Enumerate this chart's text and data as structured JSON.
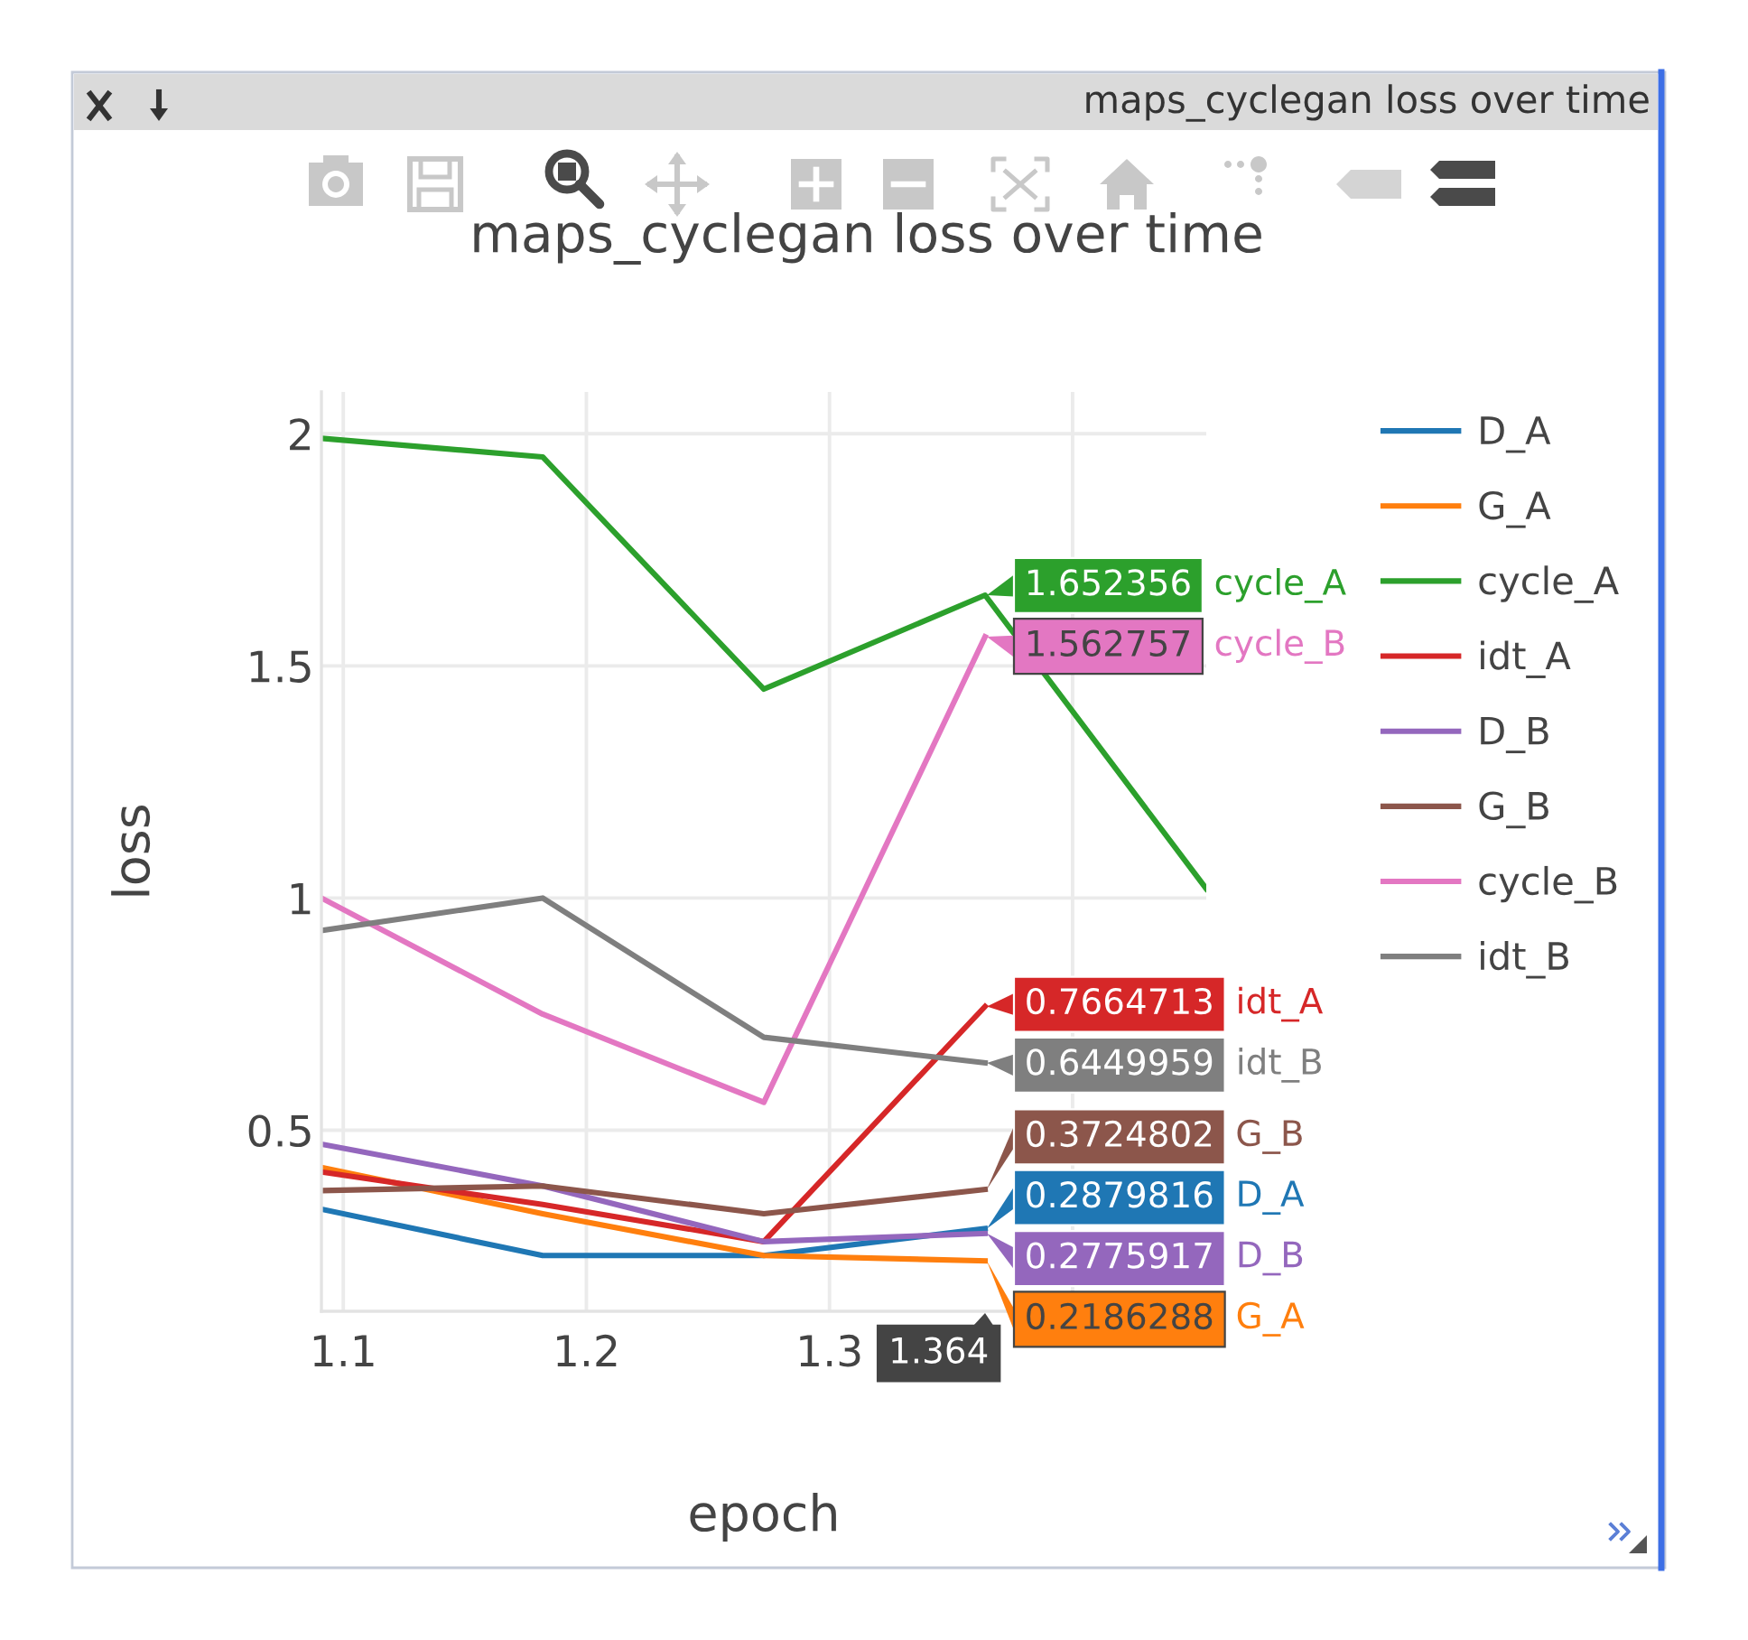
{
  "chart_data": {
    "type": "line",
    "title": "maps_cyclegan loss over time",
    "xlabel": "epoch",
    "ylabel": "loss",
    "x": [
      1.091,
      1.182,
      1.273,
      1.364,
      1.455
    ],
    "xlim": [
      1.091,
      1.455
    ],
    "ylim": [
      0.11,
      2.09
    ],
    "xticks": [
      1.1,
      1.2,
      1.3,
      {
        "value": 1.4,
        "label": null
      }
    ],
    "yticks": [
      0.5,
      1,
      1.5,
      2
    ],
    "grid": true,
    "legend": "top right",
    "line_style": "solid",
    "series": [
      {
        "name": "D_A",
        "color": "#1f77b4",
        "values": [
          0.33,
          0.23,
          0.23,
          0.2879816,
          null
        ],
        "value_labels": [
          null,
          null,
          null,
          "0.2879816",
          null
        ]
      },
      {
        "name": "G_A",
        "color": "#ff7f0e",
        "values": [
          0.42,
          0.32,
          0.23,
          0.2186288,
          null
        ],
        "value_labels": [
          null,
          null,
          null,
          "0.2186288",
          null
        ]
      },
      {
        "name": "cycle_A",
        "color": "#2ca02c",
        "values": [
          1.99,
          1.95,
          1.45,
          1.652356,
          1.02
        ],
        "value_labels": [
          null,
          null,
          null,
          "1.652356",
          null
        ]
      },
      {
        "name": "idt_A",
        "color": "#d62728",
        "values": [
          0.41,
          0.34,
          0.26,
          0.7664713,
          null
        ],
        "value_labels": [
          null,
          null,
          null,
          "0.7664713",
          null
        ]
      },
      {
        "name": "D_B",
        "color": "#9467bd",
        "values": [
          0.47,
          0.38,
          0.26,
          0.2775917,
          null
        ],
        "value_labels": [
          null,
          null,
          null,
          "0.2775917",
          null
        ]
      },
      {
        "name": "G_B",
        "color": "#8c564b",
        "values": [
          0.37,
          0.38,
          0.32,
          0.3724802,
          null
        ],
        "value_labels": [
          null,
          null,
          null,
          "0.3724802",
          null
        ]
      },
      {
        "name": "cycle_B",
        "color": "#e377c2",
        "values": [
          1.0,
          0.75,
          0.56,
          1.562757,
          null
        ],
        "value_labels": [
          null,
          null,
          null,
          "1.562757",
          null
        ]
      },
      {
        "name": "idt_B",
        "color": "#7f7f7f",
        "values": [
          0.93,
          1.0,
          0.7,
          0.6449959,
          null
        ],
        "value_labels": [
          null,
          null,
          null,
          "0.6449959",
          null
        ]
      }
    ],
    "annotations": [
      "1.364",
      "maps_cyclegan loss over time"
    ]
  }
}
